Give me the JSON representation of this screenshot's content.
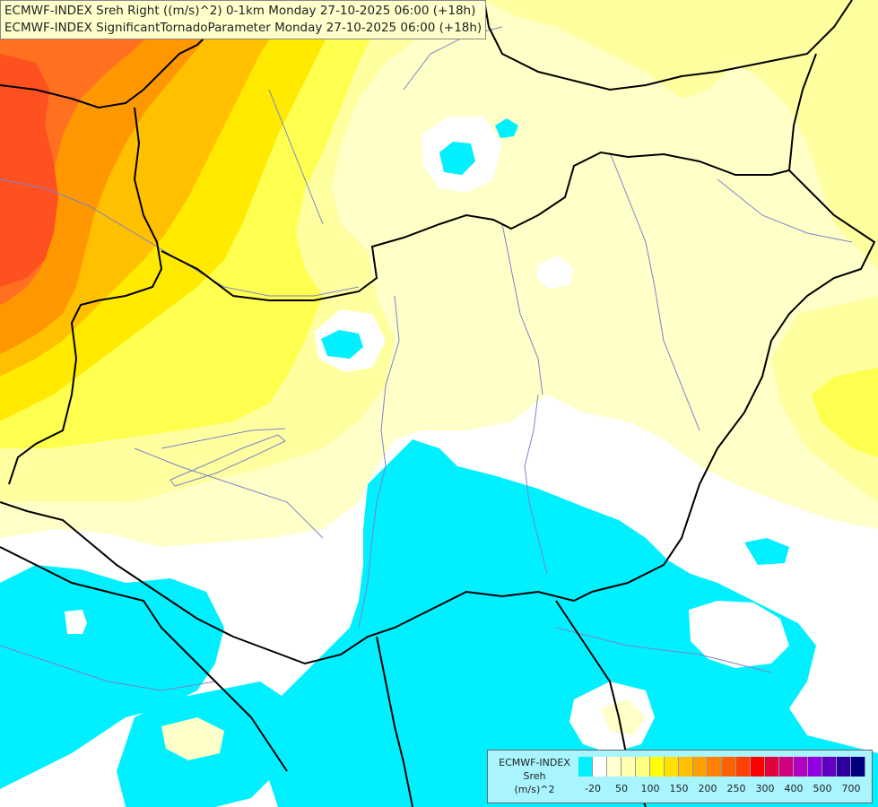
{
  "title_lines": [
    "ECMWF-INDEX Sreh Right ((m/s)^2) 0-1km Monday 27-10-2025 06:00 (+18h)",
    "ECMWF-INDEX SignificantTornadoParameter Monday 27-10-2025 06:00 (+18h)"
  ],
  "legend": {
    "line1": "ECMWF-INDEX",
    "line2": "Sreh",
    "line3": "(m/s)^2",
    "tick_labels": [
      "-20",
      "50",
      "100",
      "150",
      "200",
      "250",
      "300",
      "400",
      "500",
      "700"
    ],
    "colors": [
      "#00f0ff",
      "#ffffff",
      "#ffffd0",
      "#ffffb0",
      "#ffff80",
      "#ffff00",
      "#ffe000",
      "#ffc000",
      "#ffa000",
      "#ff8000",
      "#ff6000",
      "#ff4000",
      "#ff0000",
      "#e00040",
      "#d00080",
      "#b000c0",
      "#9000e0",
      "#6000c0",
      "#3000a0",
      "#000080"
    ]
  },
  "map_colors": {
    "cyan": "#00f0ff",
    "white": "#ffffff",
    "pale_yellow": "#ffffc8",
    "light_yellow": "#ffffa0",
    "yellow": "#ffff50",
    "gold": "#ffea00",
    "amber": "#ffc000",
    "orange": "#ff9800",
    "dark_orange": "#ff7020",
    "red_orange": "#ff5020",
    "border": "#000000",
    "river": "#7a84c8"
  }
}
